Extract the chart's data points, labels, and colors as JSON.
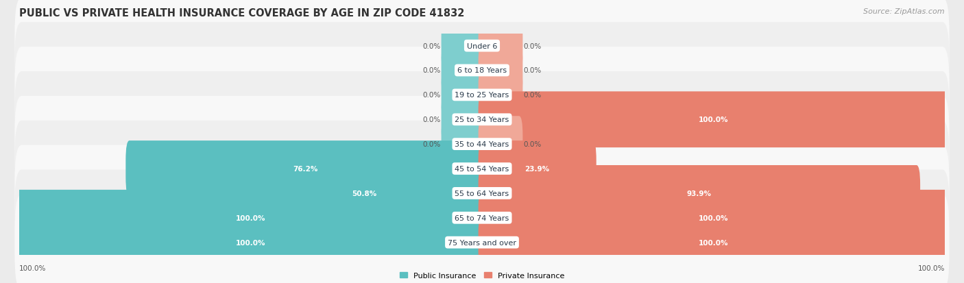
{
  "title": "PUBLIC VS PRIVATE HEALTH INSURANCE COVERAGE BY AGE IN ZIP CODE 41832",
  "source": "Source: ZipAtlas.com",
  "categories": [
    "Under 6",
    "6 to 18 Years",
    "19 to 25 Years",
    "25 to 34 Years",
    "35 to 44 Years",
    "45 to 54 Years",
    "55 to 64 Years",
    "65 to 74 Years",
    "75 Years and over"
  ],
  "public_values": [
    0.0,
    0.0,
    0.0,
    0.0,
    0.0,
    76.2,
    50.8,
    100.0,
    100.0
  ],
  "private_values": [
    0.0,
    0.0,
    0.0,
    100.0,
    0.0,
    23.9,
    93.9,
    100.0,
    100.0
  ],
  "public_color": "#5bbfc0",
  "private_color": "#e8806e",
  "public_stub_color": "#7ecece",
  "private_stub_color": "#f0a898",
  "background_color": "#ebebeb",
  "row_colors": [
    "#f8f8f8",
    "#efefef"
  ],
  "axis_label_left": "100.0%",
  "axis_label_right": "100.0%",
  "legend_public": "Public Insurance",
  "legend_private": "Private Insurance",
  "title_fontsize": 10.5,
  "source_fontsize": 8,
  "category_fontsize": 8,
  "value_fontsize": 7.5,
  "axis_tick_fontsize": 7.5,
  "max_value": 100.0,
  "stub_size": 8.0
}
